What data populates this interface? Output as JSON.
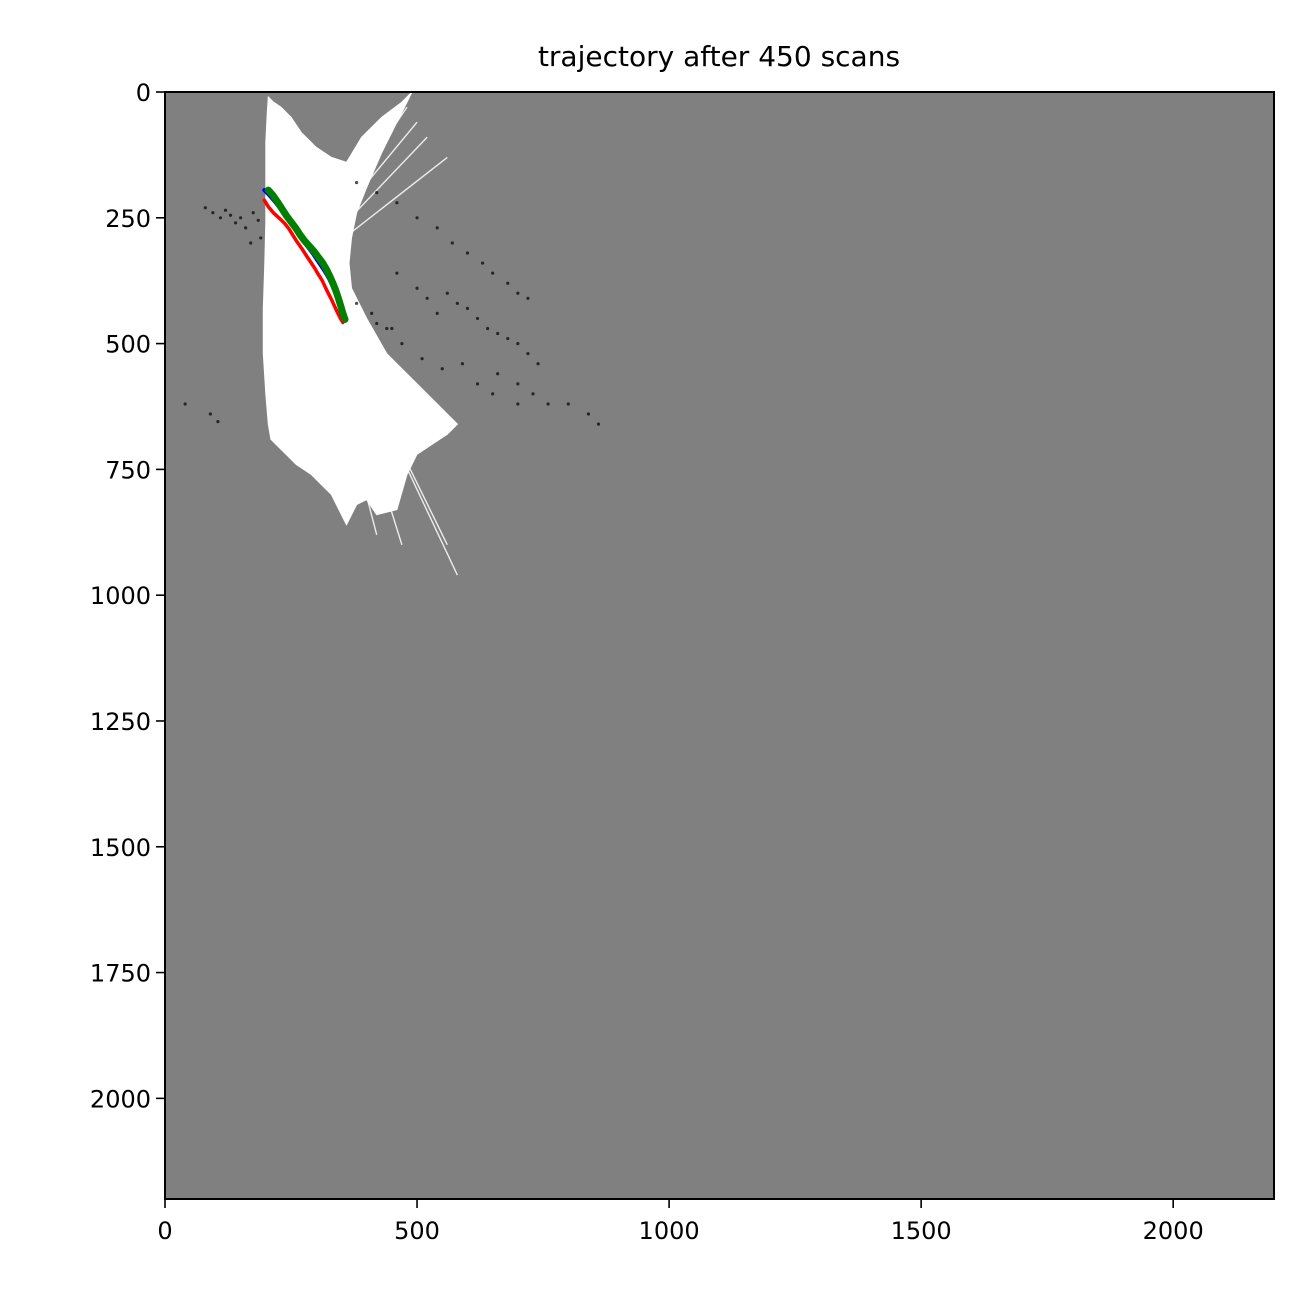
{
  "chart_data": {
    "type": "heatmap",
    "title": "trajectory after 450 scans",
    "xlabel": "",
    "ylabel": "",
    "xlim": [
      0,
      2200
    ],
    "ylim": [
      2200,
      0
    ],
    "y_axis_inverted": true,
    "grid": false,
    "legend": "none",
    "x_ticks": [
      0,
      500,
      1000,
      1500,
      2000
    ],
    "y_ticks": [
      0,
      250,
      500,
      750,
      1000,
      1250,
      1500,
      1750,
      2000
    ],
    "x_tick_labels": [
      "0",
      "500",
      "1000",
      "1500",
      "2000"
    ],
    "y_tick_labels": [
      "0",
      "250",
      "500",
      "750",
      "1000",
      "1250",
      "1500",
      "1750",
      "2000"
    ],
    "colors": {
      "unknown_cell": "#808080",
      "free_space": "#ffffff",
      "obstacle": "#000000",
      "trajectory_red": "#ff0000",
      "trajectory_blue": "#0000ff",
      "trajectory_green": "#008000"
    },
    "free_space_region": [
      [
        205,
        10
      ],
      [
        215,
        20
      ],
      [
        230,
        30
      ],
      [
        250,
        50
      ],
      [
        270,
        80
      ],
      [
        300,
        110
      ],
      [
        330,
        130
      ],
      [
        360,
        140
      ],
      [
        390,
        90
      ],
      [
        430,
        50
      ],
      [
        470,
        20
      ],
      [
        490,
        0
      ],
      [
        480,
        20
      ],
      [
        460,
        60
      ],
      [
        430,
        120
      ],
      [
        400,
        190
      ],
      [
        380,
        240
      ],
      [
        370,
        290
      ],
      [
        365,
        340
      ],
      [
        370,
        390
      ],
      [
        400,
        450
      ],
      [
        440,
        520
      ],
      [
        480,
        560
      ],
      [
        540,
        620
      ],
      [
        580,
        660
      ],
      [
        560,
        680
      ],
      [
        530,
        700
      ],
      [
        500,
        720
      ],
      [
        480,
        760
      ],
      [
        460,
        830
      ],
      [
        420,
        840
      ],
      [
        400,
        810
      ],
      [
        380,
        820
      ],
      [
        360,
        860
      ],
      [
        345,
        830
      ],
      [
        330,
        800
      ],
      [
        310,
        780
      ],
      [
        290,
        760
      ],
      [
        260,
        740
      ],
      [
        240,
        720
      ],
      [
        210,
        690
      ],
      [
        205,
        660
      ],
      [
        200,
        600
      ],
      [
        195,
        520
      ],
      [
        195,
        430
      ],
      [
        198,
        340
      ],
      [
        200,
        260
      ],
      [
        200,
        180
      ],
      [
        200,
        100
      ],
      [
        203,
        40
      ]
    ],
    "free_space_rays": [
      [
        [
          340,
          450
        ],
        [
          580,
          960
        ]
      ],
      [
        [
          340,
          450
        ],
        [
          560,
          900
        ]
      ],
      [
        [
          300,
          420
        ],
        [
          420,
          880
        ]
      ],
      [
        [
          320,
          420
        ],
        [
          470,
          900
        ]
      ],
      [
        [
          340,
          460
        ],
        [
          460,
          650
        ]
      ],
      [
        [
          330,
          440
        ],
        [
          440,
          620
        ]
      ],
      [
        [
          300,
          300
        ],
        [
          480,
          30
        ]
      ],
      [
        [
          310,
          290
        ],
        [
          500,
          60
        ]
      ],
      [
        [
          320,
          300
        ],
        [
          520,
          90
        ]
      ],
      [
        [
          330,
          310
        ],
        [
          560,
          130
        ]
      ],
      [
        [
          290,
          300
        ],
        [
          440,
          60
        ]
      ]
    ],
    "obstacle_clusters": [
      [
        80,
        230
      ],
      [
        95,
        240
      ],
      [
        110,
        250
      ],
      [
        120,
        235
      ],
      [
        130,
        245
      ],
      [
        140,
        260
      ],
      [
        150,
        250
      ],
      [
        160,
        270
      ],
      [
        175,
        240
      ],
      [
        185,
        255
      ],
      [
        190,
        290
      ],
      [
        170,
        300
      ],
      [
        90,
        640
      ],
      [
        105,
        655
      ],
      [
        40,
        620
      ],
      [
        380,
        180
      ],
      [
        420,
        200
      ],
      [
        460,
        220
      ],
      [
        500,
        250
      ],
      [
        540,
        270
      ],
      [
        570,
        300
      ],
      [
        600,
        320
      ],
      [
        630,
        340
      ],
      [
        650,
        360
      ],
      [
        680,
        380
      ],
      [
        700,
        400
      ],
      [
        720,
        410
      ],
      [
        560,
        400
      ],
      [
        580,
        420
      ],
      [
        600,
        430
      ],
      [
        620,
        450
      ],
      [
        640,
        470
      ],
      [
        660,
        480
      ],
      [
        680,
        490
      ],
      [
        700,
        500
      ],
      [
        720,
        520
      ],
      [
        740,
        540
      ],
      [
        660,
        560
      ],
      [
        700,
        580
      ],
      [
        730,
        600
      ],
      [
        760,
        620
      ],
      [
        800,
        620
      ],
      [
        840,
        640
      ],
      [
        860,
        660
      ],
      [
        460,
        360
      ],
      [
        500,
        390
      ],
      [
        520,
        410
      ],
      [
        540,
        440
      ],
      [
        440,
        470
      ],
      [
        470,
        500
      ],
      [
        510,
        530
      ],
      [
        550,
        550
      ],
      [
        590,
        540
      ],
      [
        620,
        580
      ],
      [
        650,
        600
      ],
      [
        700,
        620
      ],
      [
        380,
        420
      ],
      [
        410,
        440
      ],
      [
        420,
        460
      ],
      [
        450,
        470
      ]
    ],
    "series": [
      {
        "values": [
          [
            197,
            215
          ],
          [
            205,
            228
          ],
          [
            215,
            240
          ],
          [
            228,
            252
          ],
          [
            238,
            262
          ],
          [
            246,
            272
          ],
          [
            254,
            285
          ],
          [
            262,
            298
          ],
          [
            272,
            312
          ],
          [
            281,
            326
          ],
          [
            289,
            338
          ],
          [
            297,
            350
          ],
          [
            304,
            362
          ],
          [
            312,
            375
          ],
          [
            318,
            388
          ],
          [
            324,
            400
          ],
          [
            330,
            412
          ],
          [
            336,
            425
          ],
          [
            342,
            438
          ],
          [
            348,
            450
          ],
          [
            353,
            458
          ]
        ]
      },
      {
        "values": [
          [
            197,
            195
          ],
          [
            207,
            205
          ],
          [
            218,
            218
          ],
          [
            229,
            232
          ],
          [
            239,
            245
          ],
          [
            248,
            256
          ],
          [
            257,
            270
          ],
          [
            266,
            284
          ],
          [
            276,
            298
          ],
          [
            285,
            310
          ],
          [
            294,
            322
          ],
          [
            302,
            334
          ],
          [
            310,
            346
          ],
          [
            318,
            358
          ],
          [
            325,
            370
          ],
          [
            331,
            383
          ],
          [
            337,
            396
          ],
          [
            342,
            410
          ],
          [
            347,
            425
          ],
          [
            351,
            440
          ],
          [
            356,
            452
          ]
        ]
      },
      {
        "values": [
          [
            205,
            195
          ],
          [
            214,
            205
          ],
          [
            223,
            218
          ],
          [
            232,
            232
          ],
          [
            241,
            246
          ],
          [
            250,
            258
          ],
          [
            259,
            270
          ],
          [
            268,
            284
          ],
          [
            277,
            296
          ],
          [
            286,
            306
          ],
          [
            295,
            316
          ],
          [
            304,
            328
          ],
          [
            313,
            340
          ],
          [
            320,
            352
          ],
          [
            327,
            366
          ],
          [
            333,
            380
          ],
          [
            339,
            395
          ],
          [
            344,
            410
          ],
          [
            349,
            426
          ],
          [
            353,
            440
          ],
          [
            357,
            452
          ]
        ]
      }
    ]
  }
}
